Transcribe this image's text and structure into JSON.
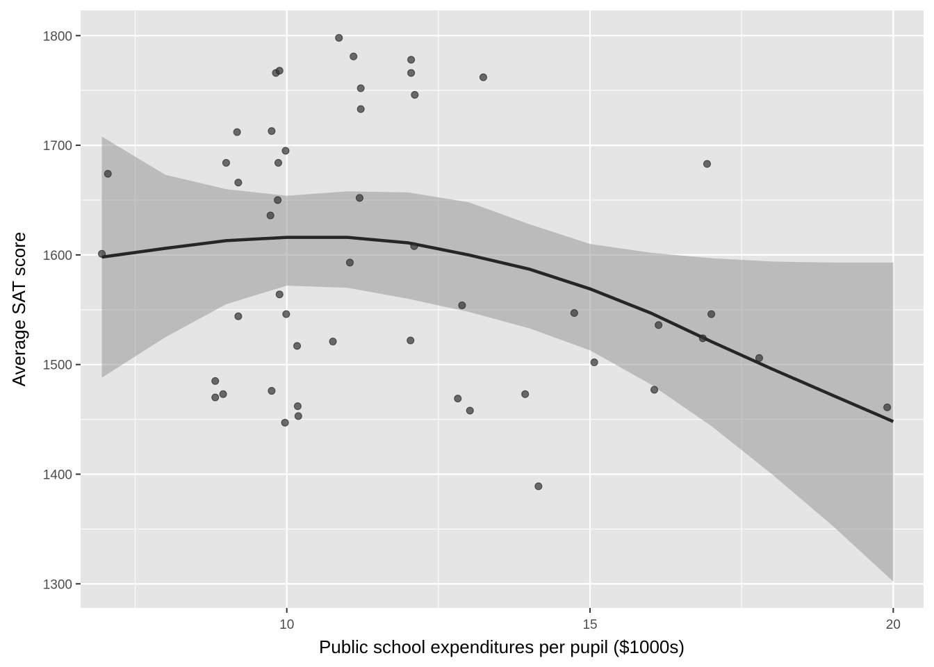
{
  "chart_data": {
    "type": "scatter",
    "title": "",
    "xlabel": "Public school expenditures per pupil ($1000s)",
    "ylabel": "Average SAT score",
    "xlim": [
      6.6,
      20.5
    ],
    "ylim": [
      1278,
      1823
    ],
    "x_ticks": [
      10,
      15,
      20
    ],
    "y_ticks": [
      1300,
      1400,
      1500,
      1600,
      1700,
      1800
    ],
    "x_tick_labels": [
      "10",
      "15",
      "20"
    ],
    "y_tick_labels": [
      "1300",
      "1400",
      "1500",
      "1600",
      "1700",
      "1800"
    ],
    "grid": true,
    "legend": "none",
    "colors": {
      "panel_background": "#e5e5e5",
      "grid": "#ffffff",
      "points": "#333333",
      "smooth_line": "#262626",
      "confidence_band": "#999999"
    },
    "points": [
      {
        "x": 6.95,
        "y": 1601
      },
      {
        "x": 7.05,
        "y": 1674
      },
      {
        "x": 8.82,
        "y": 1485
      },
      {
        "x": 8.82,
        "y": 1470
      },
      {
        "x": 8.95,
        "y": 1473
      },
      {
        "x": 9.0,
        "y": 1684
      },
      {
        "x": 9.18,
        "y": 1712
      },
      {
        "x": 9.2,
        "y": 1666
      },
      {
        "x": 9.2,
        "y": 1544
      },
      {
        "x": 9.73,
        "y": 1636
      },
      {
        "x": 9.75,
        "y": 1713
      },
      {
        "x": 9.75,
        "y": 1476
      },
      {
        "x": 9.82,
        "y": 1766
      },
      {
        "x": 9.85,
        "y": 1650
      },
      {
        "x": 9.86,
        "y": 1684
      },
      {
        "x": 9.88,
        "y": 1768
      },
      {
        "x": 9.88,
        "y": 1564
      },
      {
        "x": 9.97,
        "y": 1447
      },
      {
        "x": 9.98,
        "y": 1695
      },
      {
        "x": 9.99,
        "y": 1546
      },
      {
        "x": 10.17,
        "y": 1517
      },
      {
        "x": 10.18,
        "y": 1462
      },
      {
        "x": 10.19,
        "y": 1453
      },
      {
        "x": 10.76,
        "y": 1521
      },
      {
        "x": 10.86,
        "y": 1798
      },
      {
        "x": 11.04,
        "y": 1593
      },
      {
        "x": 11.1,
        "y": 1781
      },
      {
        "x": 11.2,
        "y": 1652
      },
      {
        "x": 11.22,
        "y": 1752
      },
      {
        "x": 11.22,
        "y": 1733
      },
      {
        "x": 12.04,
        "y": 1522
      },
      {
        "x": 12.05,
        "y": 1778
      },
      {
        "x": 12.05,
        "y": 1766
      },
      {
        "x": 12.1,
        "y": 1608
      },
      {
        "x": 12.11,
        "y": 1746
      },
      {
        "x": 12.82,
        "y": 1469
      },
      {
        "x": 12.89,
        "y": 1554
      },
      {
        "x": 13.02,
        "y": 1458
      },
      {
        "x": 13.24,
        "y": 1762
      },
      {
        "x": 13.93,
        "y": 1473
      },
      {
        "x": 14.15,
        "y": 1389
      },
      {
        "x": 14.74,
        "y": 1547
      },
      {
        "x": 15.07,
        "y": 1502
      },
      {
        "x": 16.06,
        "y": 1477
      },
      {
        "x": 16.13,
        "y": 1536
      },
      {
        "x": 16.86,
        "y": 1524
      },
      {
        "x": 16.93,
        "y": 1683
      },
      {
        "x": 17.0,
        "y": 1546
      },
      {
        "x": 17.79,
        "y": 1506
      },
      {
        "x": 19.9,
        "y": 1461
      }
    ],
    "smooth": {
      "x": [
        6.95,
        8,
        9,
        10,
        11,
        12,
        13,
        14,
        15,
        16,
        17,
        18,
        19,
        20
      ],
      "y": [
        1598,
        1606,
        1613,
        1616,
        1616,
        1611,
        1600,
        1587,
        1569,
        1547,
        1521,
        1496,
        1472,
        1448
      ],
      "lower": [
        1488,
        1525,
        1555,
        1572,
        1570,
        1560,
        1548,
        1533,
        1513,
        1482,
        1444,
        1400,
        1353,
        1302
      ],
      "upper": [
        1708,
        1673,
        1660,
        1654,
        1658,
        1657,
        1648,
        1628,
        1610,
        1602,
        1597,
        1594,
        1593,
        1593
      ]
    }
  }
}
